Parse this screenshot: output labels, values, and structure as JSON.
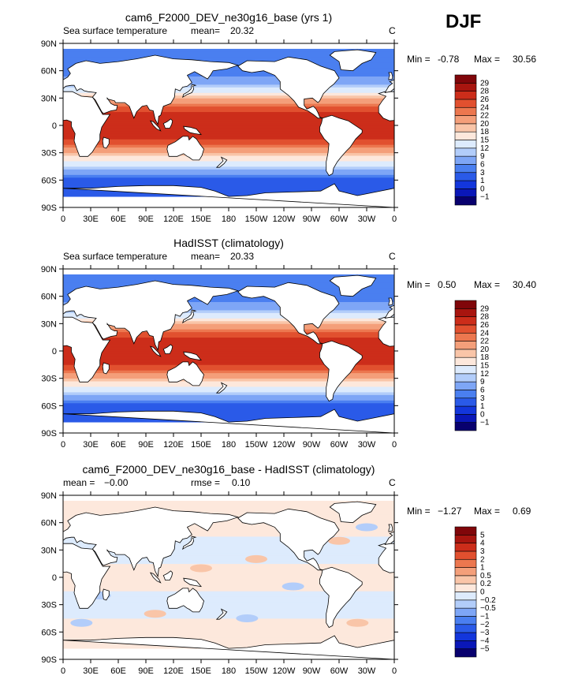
{
  "season": "DJF",
  "panels": [
    {
      "title": "cam6_F2000_DEV_ne30g16_base (yrs 1)",
      "left_label": "Sea surface temperature",
      "stat1_label": "mean=",
      "stat1_value": "20.32",
      "stat2_label": "",
      "stat2_value": "",
      "units": "C",
      "min_label": "Min =",
      "min_value": "-0.78",
      "max_label": "Max =",
      "max_value": "30.56",
      "colorbar_labels": [
        "29",
        "28",
        "26",
        "24",
        "22",
        "20",
        "18",
        "15",
        "12",
        "9",
        "6",
        "3",
        "1",
        "0",
        "−1"
      ]
    },
    {
      "title": "HadISST (climatology)",
      "left_label": "Sea surface temperature",
      "stat1_label": "mean=",
      "stat1_value": "20.33",
      "stat2_label": "",
      "stat2_value": "",
      "units": "C",
      "min_label": "Min =",
      "min_value": "0.50",
      "max_label": "Max =",
      "max_value": "30.40",
      "colorbar_labels": [
        "29",
        "28",
        "26",
        "24",
        "22",
        "20",
        "18",
        "15",
        "12",
        "9",
        "6",
        "3",
        "1",
        "0",
        "−1"
      ]
    },
    {
      "title": "cam6_F2000_DEV_ne30g16_base - HadISST (climatology)",
      "left_label": "",
      "stat1_label": "mean =",
      "stat1_value": "−0.00",
      "stat2_label": "rmse =",
      "stat2_value": "0.10",
      "units": "C",
      "min_label": "Min =",
      "min_value": "−1.27",
      "max_label": "Max =",
      "max_value": "0.69",
      "colorbar_labels": [
        "5",
        "4",
        "3",
        "2",
        "1",
        "0.5",
        "0.2",
        "0",
        "−0.2",
        "−0.5",
        "−1",
        "−2",
        "−3",
        "−4",
        "−5"
      ]
    }
  ],
  "chart_data": [
    {
      "type": "heatmap",
      "title": "cam6_F2000_DEV_ne30g16_base (yrs 1)",
      "variable": "Sea surface temperature",
      "units": "C",
      "mean": 20.32,
      "min": -0.78,
      "max": 30.56,
      "x_ticks": [
        "0",
        "30E",
        "60E",
        "90E",
        "120E",
        "150E",
        "180",
        "150W",
        "120W",
        "90W",
        "60W",
        "30W",
        "0"
      ],
      "y_ticks": [
        "90N",
        "60N",
        "30N",
        "0",
        "30S",
        "60S",
        "90S"
      ],
      "xlim": [
        0,
        360
      ],
      "ylim": [
        -90,
        90
      ],
      "contour_levels": [
        -1,
        0,
        1,
        3,
        6,
        9,
        12,
        15,
        18,
        20,
        22,
        24,
        26,
        28,
        29
      ],
      "colors": [
        "#08006e",
        "#0a17b8",
        "#1336dc",
        "#2a5ae8",
        "#4a7ff0",
        "#7ea6f6",
        "#b2cdfa",
        "#ddebfd",
        "#fde8dc",
        "#f9c5a8",
        "#f49f7a",
        "#ec774f",
        "#e1502f",
        "#cc2d1a",
        "#a8150f",
        "#80060a"
      ],
      "lat_profile_values": [
        {
          "lat": -60,
          "value": 1
        },
        {
          "lat": -45,
          "value": 12
        },
        {
          "lat": -30,
          "value": 20
        },
        {
          "lat": -15,
          "value": 26
        },
        {
          "lat": 0,
          "value": 28
        },
        {
          "lat": 15,
          "value": 26
        },
        {
          "lat": 30,
          "value": 20
        },
        {
          "lat": 45,
          "value": 9
        },
        {
          "lat": 60,
          "value": 3
        }
      ]
    },
    {
      "type": "heatmap",
      "title": "HadISST (climatology)",
      "variable": "Sea surface temperature",
      "units": "C",
      "mean": 20.33,
      "min": 0.5,
      "max": 30.4,
      "x_ticks": [
        "0",
        "30E",
        "60E",
        "90E",
        "120E",
        "150E",
        "180",
        "150W",
        "120W",
        "90W",
        "60W",
        "30W",
        "0"
      ],
      "y_ticks": [
        "90N",
        "60N",
        "30N",
        "0",
        "30S",
        "60S",
        "90S"
      ],
      "xlim": [
        0,
        360
      ],
      "ylim": [
        -90,
        90
      ],
      "contour_levels": [
        -1,
        0,
        1,
        3,
        6,
        9,
        12,
        15,
        18,
        20,
        22,
        24,
        26,
        28,
        29
      ],
      "colors": [
        "#08006e",
        "#0a17b8",
        "#1336dc",
        "#2a5ae8",
        "#4a7ff0",
        "#7ea6f6",
        "#b2cdfa",
        "#ddebfd",
        "#fde8dc",
        "#f9c5a8",
        "#f49f7a",
        "#ec774f",
        "#e1502f",
        "#cc2d1a",
        "#a8150f",
        "#80060a"
      ],
      "lat_profile_values": [
        {
          "lat": -60,
          "value": 1
        },
        {
          "lat": -45,
          "value": 12
        },
        {
          "lat": -30,
          "value": 20
        },
        {
          "lat": -15,
          "value": 26
        },
        {
          "lat": 0,
          "value": 28
        },
        {
          "lat": 15,
          "value": 26
        },
        {
          "lat": 30,
          "value": 20
        },
        {
          "lat": 45,
          "value": 9
        },
        {
          "lat": 60,
          "value": 3
        }
      ]
    },
    {
      "type": "heatmap",
      "title": "cam6_F2000_DEV_ne30g16_base - HadISST (climatology)",
      "units": "C",
      "mean": -0.0,
      "rmse": 0.1,
      "min": -1.27,
      "max": 0.69,
      "x_ticks": [
        "0",
        "30E",
        "60E",
        "90E",
        "120E",
        "150E",
        "180",
        "150W",
        "120W",
        "90W",
        "60W",
        "30W",
        "0"
      ],
      "y_ticks": [
        "90N",
        "60N",
        "30N",
        "0",
        "30S",
        "60S",
        "90S"
      ],
      "xlim": [
        0,
        360
      ],
      "ylim": [
        -90,
        90
      ],
      "contour_levels": [
        -5,
        -4,
        -3,
        -2,
        -1,
        -0.5,
        -0.2,
        0,
        0.2,
        0.5,
        1,
        2,
        3,
        4,
        5
      ],
      "colors": [
        "#08006e",
        "#0a17b8",
        "#1336dc",
        "#2a5ae8",
        "#4a7ff0",
        "#7ea6f6",
        "#b2cdfa",
        "#ddebfd",
        "#fde8dc",
        "#f9c5a8",
        "#f49f7a",
        "#ec774f",
        "#e1502f",
        "#cc2d1a",
        "#a8150f",
        "#80060a"
      ],
      "lat_profile_values": [
        {
          "lat": -60,
          "value": 0.1
        },
        {
          "lat": -30,
          "value": -0.1
        },
        {
          "lat": 0,
          "value": 0.1
        },
        {
          "lat": 30,
          "value": -0.1
        },
        {
          "lat": 60,
          "value": 0.1
        }
      ]
    }
  ]
}
